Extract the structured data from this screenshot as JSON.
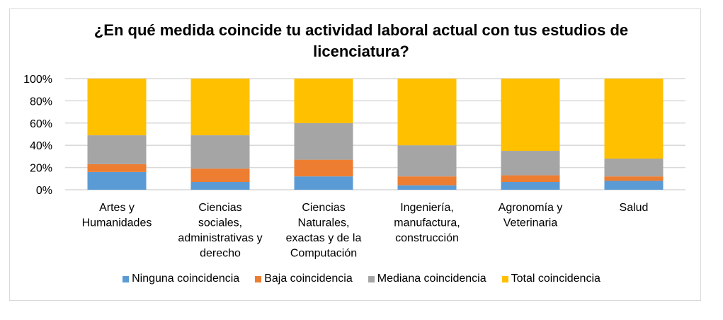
{
  "chart_data": {
    "type": "bar",
    "stacked": true,
    "title": "¿En qué medida coincide tu actividad laboral actual con tus estudios de licenciatura?",
    "categories": [
      [
        "Artes y",
        "Humanidades"
      ],
      [
        "Ciencias",
        "sociales,",
        "administrativas y",
        "derecho"
      ],
      [
        "Ciencias",
        "Naturales,",
        "exactas y de la",
        "Computación"
      ],
      [
        "Ingeniería,",
        "manufactura,",
        "construcción"
      ],
      [
        "Agronomía y",
        "Veterinaria"
      ],
      [
        "Salud"
      ]
    ],
    "series": [
      {
        "name": "Ninguna coincidencia",
        "color": "#5b9bd5",
        "values": [
          16,
          7,
          12,
          4,
          7,
          8
        ]
      },
      {
        "name": "Baja coincidencia",
        "color": "#ed7d31",
        "values": [
          7,
          12,
          15,
          8,
          6,
          4
        ]
      },
      {
        "name": "Mediana coincidencia",
        "color": "#a5a5a5",
        "values": [
          26,
          30,
          33,
          28,
          22,
          16
        ]
      },
      {
        "name": "Total coincidencia",
        "color": "#ffc000",
        "values": [
          51,
          51,
          40,
          60,
          65,
          72
        ]
      }
    ],
    "ylim": [
      0,
      100
    ],
    "yticks": [
      "0%",
      "20%",
      "40%",
      "60%",
      "80%",
      "100%"
    ],
    "grid": true,
    "legend": "bottom"
  }
}
